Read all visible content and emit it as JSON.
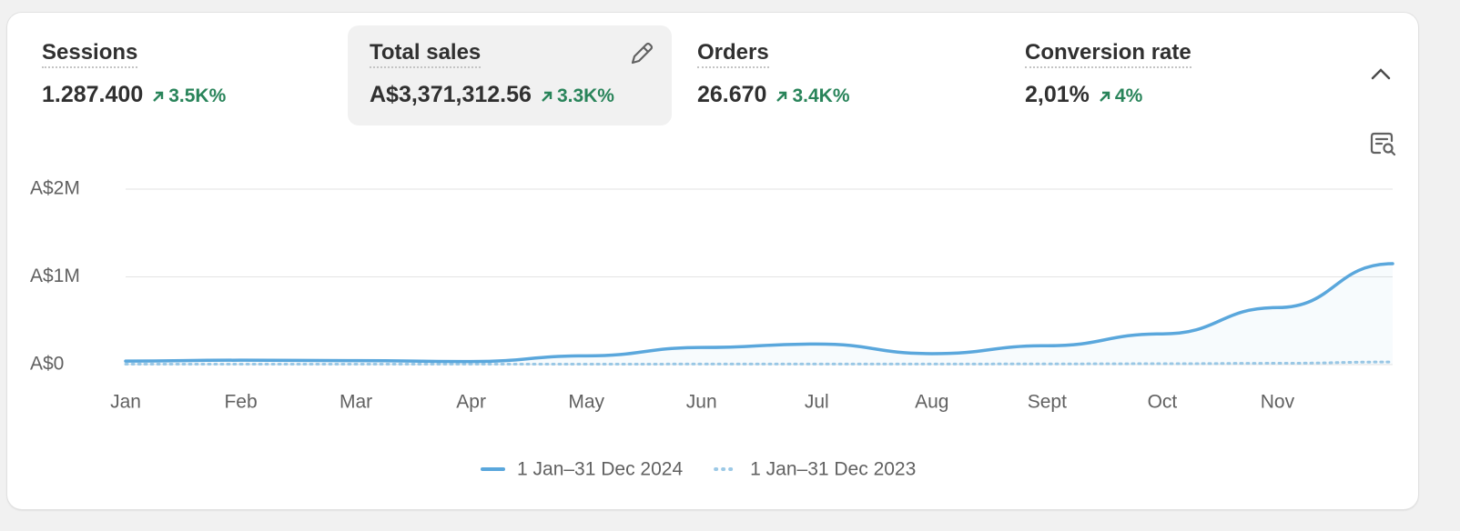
{
  "metrics": [
    {
      "label": "Sessions",
      "value": "1.287.400",
      "change": "3.5K%"
    },
    {
      "label": "Total sales",
      "value": "A$3,371,312.56",
      "change": "3.3K%"
    },
    {
      "label": "Orders",
      "value": "26.670",
      "change": "3.4K%"
    },
    {
      "label": "Conversion rate",
      "value": "2,01%",
      "change": "4%"
    }
  ],
  "chart_data": {
    "type": "line",
    "categories": [
      "Jan",
      "Feb",
      "Mar",
      "Apr",
      "May",
      "Jun",
      "Jul",
      "Aug",
      "Sept",
      "Oct",
      "Nov",
      null
    ],
    "series": [
      {
        "name": "1 Jan–31 Dec 2024",
        "color": "#5aa7dc",
        "style": "solid",
        "values": [
          40000,
          50000,
          45000,
          35000,
          100000,
          195000,
          235000,
          125000,
          215000,
          350000,
          650000,
          1150000
        ]
      },
      {
        "name": "1 Jan–31 Dec 2023",
        "color": "#9cc9e6",
        "style": "dotted",
        "values": [
          5000,
          5000,
          5000,
          5000,
          5000,
          6000,
          6000,
          6000,
          8000,
          10000,
          15000,
          30000
        ]
      }
    ],
    "ylim": [
      0,
      2000000
    ],
    "yticks": [
      {
        "value": 0,
        "label": "A$0"
      },
      {
        "value": 1000000,
        "label": "A$1M"
      },
      {
        "value": 2000000,
        "label": "A$2M"
      }
    ],
    "grid": true
  }
}
